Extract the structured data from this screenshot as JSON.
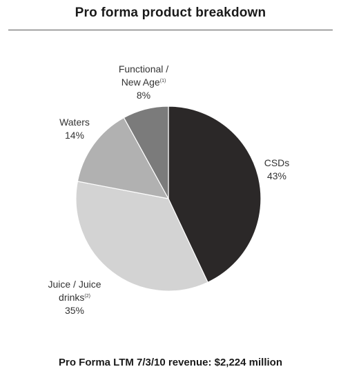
{
  "chart_data": {
    "type": "pie",
    "title": "Pro forma product breakdown",
    "footer": "Pro Forma LTM 7/3/10 revenue: $2,224 million",
    "slices": [
      {
        "lines": [
          "CSDs"
        ],
        "note": "",
        "pct_label": "43%",
        "value": 43,
        "color": "#2b2828"
      },
      {
        "lines": [
          "Juice / Juice",
          "drinks"
        ],
        "note": "(2)",
        "pct_label": "35%",
        "value": 35,
        "color": "#d3d3d3"
      },
      {
        "lines": [
          "Waters"
        ],
        "note": "",
        "pct_label": "14%",
        "value": 14,
        "color": "#b1b1b1"
      },
      {
        "lines": [
          "Functional /",
          "New Age"
        ],
        "note": "(1)",
        "pct_label": "8%",
        "value": 8,
        "color": "#7b7b7b"
      }
    ]
  }
}
